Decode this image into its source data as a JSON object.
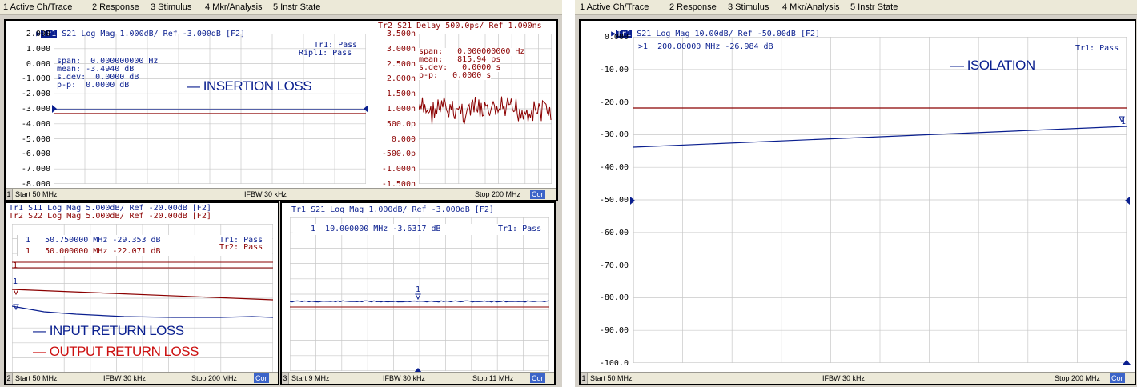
{
  "menu": [
    "1 Active Ch/Trace",
    "2 Response",
    "3 Stimulus",
    "4 Mkr/Analysis",
    "5 Instr State"
  ],
  "colors": {
    "trace1": "#0a1f8f",
    "trace2": "#8b0000",
    "grid": "#c8c8c8",
    "cor": "#3c64c8"
  },
  "ch1": {
    "header_tr1": "S21 Log Mag 1.000dB/ Ref -3.000dB [F2]",
    "header_tr2": "Tr2 S21 Delay 500.0ps/ Ref 1.000ns",
    "tr1_badge": "Tr1",
    "left_ticks": [
      "2.000",
      "1.000",
      "0.000",
      "-1.000",
      "-2.000",
      "-3.000",
      "-4.000",
      "-5.000",
      "-6.000",
      "-7.000",
      "-8.000"
    ],
    "right_ticks": [
      "3.500n",
      "3.000n",
      "2.500n",
      "2.000n",
      "1.500n",
      "1.000n",
      "500.0p",
      "0.000",
      "-500.0p",
      "-1.000n",
      "-1.500n"
    ],
    "pass1": "Tr1: Pass",
    "pass2": "Ripl1: Pass",
    "stats1": [
      "span:  0.000000000 Hz",
      "mean: -3.4940 dB",
      "s.dev:  0.0000 dB",
      "p-p:  0.0000 dB"
    ],
    "stats2": [
      "span:   0.000000000 Hz",
      "mean:   815.94 ps",
      "s.dev:   0.0000 s",
      "p-p:   0.0000 s"
    ],
    "note": "— INSERTION LOSS",
    "status": {
      "num": "1",
      "start": "Start 50 MHz",
      "ifbw": "IFBW 30 kHz",
      "stop": "Stop 200 MHz",
      "cor": "Cor"
    }
  },
  "ch2": {
    "header_tr1": "Tr1 S11 Log Mag 5.000dB/ Ref -20.00dB [F2]",
    "header_tr2": "Tr2 S22 Log Mag 5.000dB/ Ref -20.00dB [F2]",
    "marker1": "1   50.750000 MHz -29.353 dB",
    "marker2": "1   50.000000 MHz -22.071 dB",
    "pass1": "Tr1: Pass",
    "pass2": "Tr2: Pass",
    "note1": "— INPUT RETURN LOSS",
    "note2": "— OUTPUT RETURN LOSS",
    "marker_num": "1",
    "status": {
      "num": "2",
      "start": "Start 50 MHz",
      "ifbw": "IFBW 30 kHz",
      "stop": "Stop 200 MHz",
      "cor": "Cor"
    }
  },
  "ch3": {
    "header": "Tr1 S21 Log Mag 1.000dB/ Ref -3.000dB [F2]",
    "marker": "1  10.000000 MHz -3.6317 dB",
    "pass": "Tr1: Pass",
    "marker_num": "1",
    "status": {
      "num": "3",
      "start": "Start 9 MHz",
      "ifbw": "IFBW 30 kHz",
      "stop": "Stop 11 MHz",
      "cor": "Cor"
    }
  },
  "ch4": {
    "header": "S21 Log Mag 10.00dB/ Ref -50.00dB [F2]",
    "tr1_badge": "Tr1",
    "ticks": [
      "0.000",
      "-10.00",
      "-20.00",
      "-30.00",
      "-40.00",
      "-50.00",
      "-60.00",
      "-70.00",
      "-80.00",
      "-90.00",
      "-100.0"
    ],
    "marker": ">1  200.00000 MHz -26.984 dB",
    "pass": "Tr1: Pass",
    "note": "— ISOLATION",
    "marker_num": "1",
    "status": {
      "num": "1",
      "start": "Start 50 MHz",
      "ifbw": "IFBW 30 kHz",
      "stop": "Stop 200 MHz",
      "cor": "Cor"
    }
  }
}
